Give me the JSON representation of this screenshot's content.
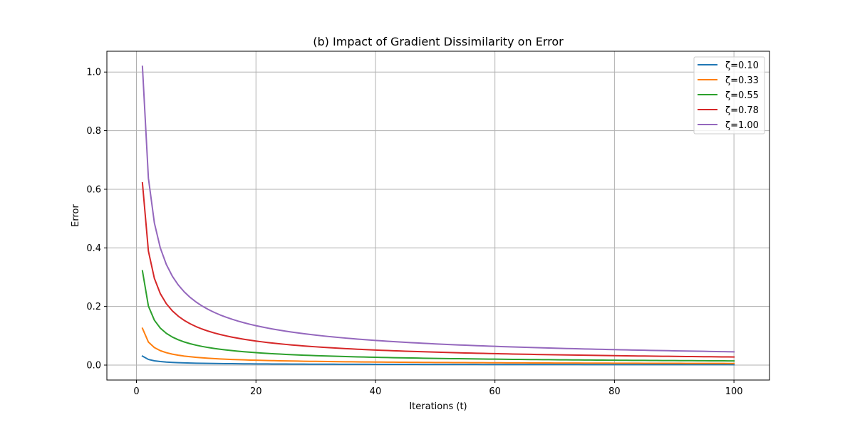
{
  "chart_data": {
    "type": "line",
    "title": "(b) Impact of Gradient Dissimilarity on Error",
    "xlabel": "Iterations (t)",
    "ylabel": "Error",
    "xlim": [
      -4.95,
      105.95
    ],
    "ylim": [
      -0.051,
      1.071
    ],
    "xticks": [
      0,
      20,
      40,
      60,
      80,
      100
    ],
    "xtick_labels": [
      "0",
      "20",
      "40",
      "60",
      "80",
      "100"
    ],
    "yticks": [
      0.0,
      0.2,
      0.4,
      0.6,
      0.8,
      1.0
    ],
    "ytick_labels": [
      "0.0",
      "0.2",
      "0.4",
      "0.6",
      "0.8",
      "1.0"
    ],
    "grid": true,
    "legend_position": "top-right",
    "model": "error = a / t^p",
    "exponent": 0.676,
    "t_range": [
      1,
      100
    ],
    "series": [
      {
        "name": "ζ=0.10",
        "color": "#1f77b4",
        "a": 0.0308
      },
      {
        "name": "ζ=0.33",
        "color": "#ff7f0e",
        "a": 0.1255
      },
      {
        "name": "ζ=0.55",
        "color": "#2ca02c",
        "a": 0.3218
      },
      {
        "name": "ζ=0.78",
        "color": "#d62728",
        "a": 0.6218
      },
      {
        "name": "ζ=1.00",
        "color": "#9467bd",
        "a": 1.0192
      }
    ]
  }
}
